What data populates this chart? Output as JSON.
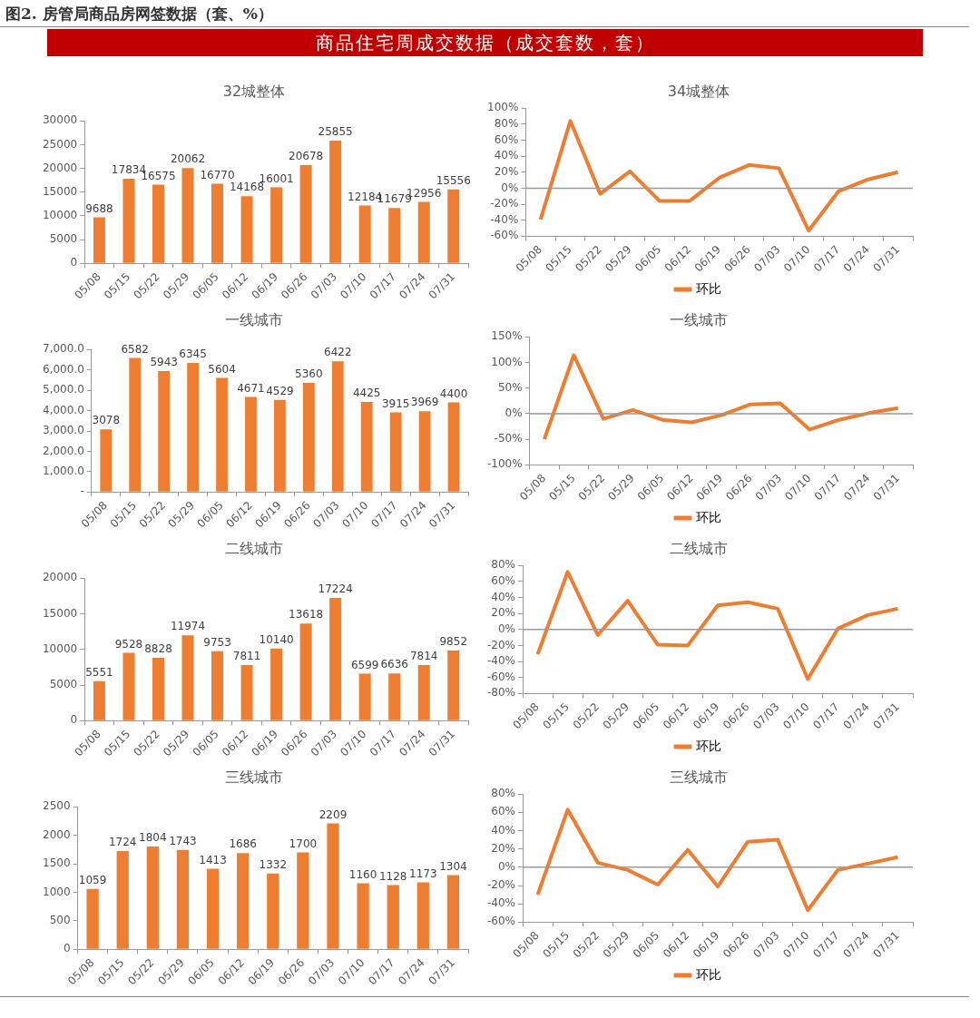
{
  "chart_data": [
    {
      "type": "other",
      "title": "图2. 房管局商品房网签数据（套、%）",
      "subtitle": "商品住宅周成交数据（成交套数，套）"
    },
    {
      "type": "bar",
      "title": "32城整体",
      "categories": [
        "05/08",
        "05/15",
        "05/22",
        "05/29",
        "06/05",
        "06/12",
        "06/19",
        "06/26",
        "07/03",
        "07/10",
        "07/17",
        "07/24",
        "07/31"
      ],
      "values": [
        9688,
        17834,
        16575,
        20062,
        16770,
        14168,
        16001,
        20678,
        25855,
        12184,
        11679,
        12956,
        15556
      ],
      "color": "#ed7d31",
      "ylim": [
        0,
        30000
      ],
      "yticks": [
        0,
        5000,
        10000,
        15000,
        20000,
        25000,
        30000
      ],
      "data_labels": true
    },
    {
      "type": "line",
      "title": "34城整体",
      "categories": [
        "05/08",
        "05/15",
        "05/22",
        "05/29",
        "06/05",
        "06/12",
        "06/19",
        "06/26",
        "07/03",
        "07/10",
        "07/17",
        "07/24",
        "07/31"
      ],
      "series": [
        {
          "name": "环比",
          "color": "#ed7d31",
          "values": [
            -39,
            84,
            -7,
            21,
            -16,
            -16,
            13,
            29,
            25,
            -53,
            -4,
            11,
            20
          ]
        }
      ],
      "ref_lines": [
        {
          "axis": "y",
          "value": 0
        }
      ],
      "ylim": [
        -60,
        100
      ],
      "yticks": [
        {
          "value": -60,
          "label": "-60%"
        },
        {
          "value": -40,
          "label": "-40%"
        },
        {
          "value": -20,
          "label": "-20%"
        },
        {
          "value": 0,
          "label": "0%"
        },
        {
          "value": 20,
          "label": "20%"
        },
        {
          "value": 40,
          "label": "40%"
        },
        {
          "value": 60,
          "label": "60%"
        },
        {
          "value": 80,
          "label": "80%"
        },
        {
          "value": 100,
          "label": "100%"
        }
      ],
      "legend": "bottom",
      "marker": "none"
    },
    {
      "type": "bar",
      "title": "一线城市",
      "categories": [
        "05/08",
        "05/15",
        "05/22",
        "05/29",
        "06/05",
        "06/12",
        "06/19",
        "06/26",
        "07/03",
        "07/10",
        "07/17",
        "07/24",
        "07/31"
      ],
      "values": [
        3078,
        6582,
        5943,
        6345,
        5604,
        4671,
        4529,
        5360,
        6422,
        4425,
        3915,
        3969,
        4400
      ],
      "color": "#ed7d31",
      "ylim": [
        0,
        7000
      ],
      "yticks": [
        {
          "value": 0,
          "label": "-"
        },
        {
          "value": 1000,
          "label": "1,000.0"
        },
        {
          "value": 2000,
          "label": "2,000.0"
        },
        {
          "value": 3000,
          "label": "3,000.0"
        },
        {
          "value": 4000,
          "label": "4,000.0"
        },
        {
          "value": 5000,
          "label": "5,000.0"
        },
        {
          "value": 6000,
          "label": "6,000.0"
        },
        {
          "value": 7000,
          "label": "7,000.0"
        }
      ],
      "data_labels": true
    },
    {
      "type": "line",
      "title": "一线城市",
      "categories": [
        "05/08",
        "05/15",
        "05/22",
        "05/29",
        "06/05",
        "06/12",
        "06/19",
        "06/26",
        "07/03",
        "07/10",
        "07/17",
        "07/24",
        "07/31"
      ],
      "series": [
        {
          "name": "环比",
          "color": "#ed7d31",
          "values": [
            -50,
            114,
            -10,
            7,
            -12,
            -17,
            -3,
            18,
            20,
            -31,
            -12,
            1,
            11
          ]
        }
      ],
      "ref_lines": [
        {
          "axis": "y",
          "value": 0
        }
      ],
      "ylim": [
        -100,
        150
      ],
      "yticks": [
        {
          "value": -100,
          "label": "-100%"
        },
        {
          "value": -50,
          "label": "-50%"
        },
        {
          "value": 0,
          "label": "0%"
        },
        {
          "value": 50,
          "label": "50%"
        },
        {
          "value": 100,
          "label": "100%"
        },
        {
          "value": 150,
          "label": "150%"
        }
      ],
      "legend": "bottom",
      "marker": "none"
    },
    {
      "type": "bar",
      "title": "二线城市",
      "categories": [
        "05/08",
        "05/15",
        "05/22",
        "05/29",
        "06/05",
        "06/12",
        "06/19",
        "06/26",
        "07/03",
        "07/10",
        "07/17",
        "07/24",
        "07/31"
      ],
      "values": [
        5551,
        9528,
        8828,
        11974,
        9753,
        7811,
        10140,
        13618,
        17224,
        6599,
        6636,
        7814,
        9852
      ],
      "color": "#ed7d31",
      "ylim": [
        0,
        20000
      ],
      "yticks": [
        0,
        5000,
        10000,
        15000,
        20000
      ],
      "data_labels": true
    },
    {
      "type": "line",
      "title": "二线城市",
      "categories": [
        "05/08",
        "05/15",
        "05/22",
        "05/29",
        "06/05",
        "06/12",
        "06/19",
        "06/26",
        "07/03",
        "07/10",
        "07/17",
        "07/24",
        "07/31"
      ],
      "series": [
        {
          "name": "环比",
          "color": "#ed7d31",
          "values": [
            -31,
            72,
            -7,
            36,
            -19,
            -20,
            30,
            34,
            26,
            -62,
            1,
            18,
            26
          ]
        }
      ],
      "ref_lines": [
        {
          "axis": "y",
          "value": 0
        }
      ],
      "ylim": [
        -80,
        80
      ],
      "yticks": [
        {
          "value": -80,
          "label": "-80%"
        },
        {
          "value": -60,
          "label": "-60%"
        },
        {
          "value": -40,
          "label": "-40%"
        },
        {
          "value": -20,
          "label": "-20%"
        },
        {
          "value": 0,
          "label": "0%"
        },
        {
          "value": 20,
          "label": "20%"
        },
        {
          "value": 40,
          "label": "40%"
        },
        {
          "value": 60,
          "label": "60%"
        },
        {
          "value": 80,
          "label": "80%"
        }
      ],
      "legend": "bottom",
      "marker": "none"
    },
    {
      "type": "bar",
      "title": "三线城市",
      "categories": [
        "05/08",
        "05/15",
        "05/22",
        "05/29",
        "06/05",
        "06/12",
        "06/19",
        "06/26",
        "07/03",
        "07/10",
        "07/17",
        "07/24",
        "07/31"
      ],
      "values": [
        1059,
        1724,
        1804,
        1743,
        1413,
        1686,
        1332,
        1700,
        2209,
        1160,
        1128,
        1173,
        1304
      ],
      "color": "#ed7d31",
      "ylim": [
        0,
        2500
      ],
      "yticks": [
        0,
        500,
        1000,
        1500,
        2000,
        2500
      ],
      "data_labels": true
    },
    {
      "type": "line",
      "title": "三线城市",
      "categories": [
        "05/08",
        "05/15",
        "05/22",
        "05/29",
        "06/05",
        "06/12",
        "06/19",
        "06/26",
        "07/03",
        "07/10",
        "07/17",
        "07/24",
        "07/31"
      ],
      "series": [
        {
          "name": "环比",
          "color": "#ed7d31",
          "values": [
            -30,
            63,
            5,
            -3,
            -19,
            19,
            -21,
            28,
            30,
            -47,
            -3,
            4,
            11
          ]
        }
      ],
      "ref_lines": [
        {
          "axis": "y",
          "value": 0
        }
      ],
      "ylim": [
        -60,
        80
      ],
      "yticks": [
        {
          "value": -60,
          "label": "-60%"
        },
        {
          "value": -40,
          "label": "-40%"
        },
        {
          "value": -20,
          "label": "-20%"
        },
        {
          "value": 0,
          "label": "0%"
        },
        {
          "value": 20,
          "label": "20%"
        },
        {
          "value": 40,
          "label": "40%"
        },
        {
          "value": 60,
          "label": "60%"
        },
        {
          "value": 80,
          "label": "80%"
        }
      ],
      "legend": "bottom",
      "marker": "none"
    }
  ]
}
